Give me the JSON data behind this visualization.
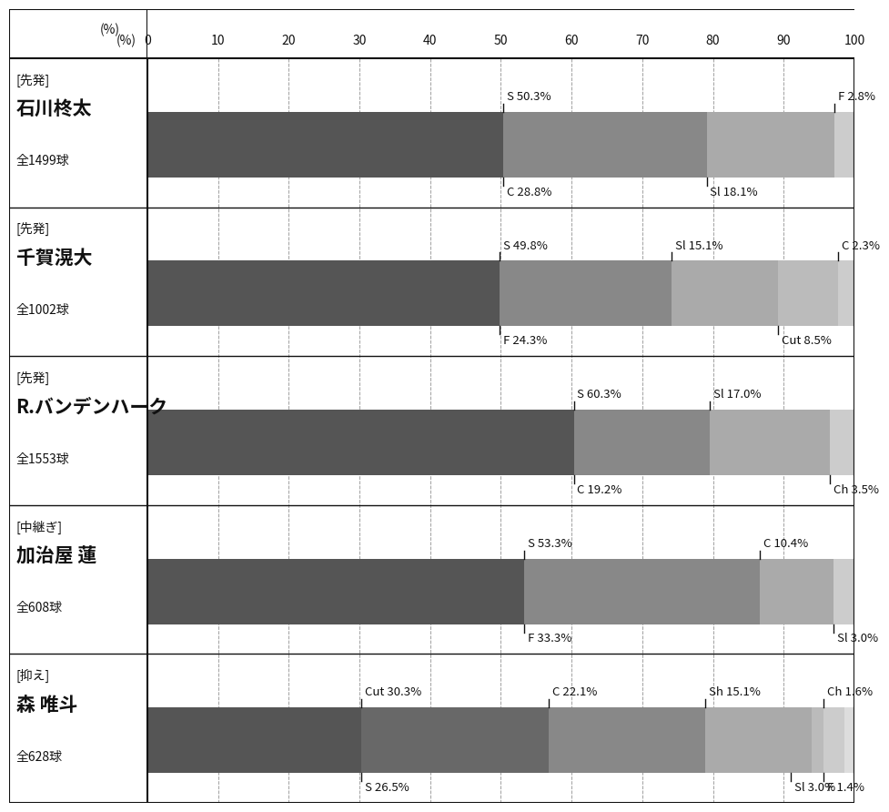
{
  "players": [
    {
      "role": "[先発]",
      "name": "石川柊太",
      "total": "全1499球",
      "segments": [
        {
          "label": "S",
          "value": 50.3,
          "color": "#555555"
        },
        {
          "label": "C",
          "value": 28.8,
          "color": "#888888"
        },
        {
          "label": "Sl",
          "value": 18.1,
          "color": "#aaaaaa"
        },
        {
          "label": "F",
          "value": 2.8,
          "color": "#cccccc"
        }
      ],
      "top_labels": [
        {
          "label": "S 50.3%",
          "x": 50.3
        },
        {
          "label": "F 2.8%",
          "x": 97.2
        }
      ],
      "bottom_labels": [
        {
          "label": "C 28.8%",
          "x": 50.3
        },
        {
          "label": "Sl 18.1%",
          "x": 79.1
        }
      ]
    },
    {
      "role": "[先発]",
      "name": "千賀滉大",
      "total": "全1002球",
      "segments": [
        {
          "label": "S",
          "value": 49.8,
          "color": "#555555"
        },
        {
          "label": "F",
          "value": 24.3,
          "color": "#888888"
        },
        {
          "label": "Sl",
          "value": 15.1,
          "color": "#aaaaaa"
        },
        {
          "label": "Cut",
          "value": 8.5,
          "color": "#bbbbbb"
        },
        {
          "label": "C",
          "value": 2.3,
          "color": "#cccccc"
        }
      ],
      "top_labels": [
        {
          "label": "S 49.8%",
          "x": 49.8
        },
        {
          "label": "Sl 15.1%",
          "x": 74.1
        },
        {
          "label": "C 2.3%",
          "x": 97.7
        }
      ],
      "bottom_labels": [
        {
          "label": "F 24.3%",
          "x": 49.8
        },
        {
          "label": "Cut 8.5%",
          "x": 89.2
        }
      ]
    },
    {
      "role": "[先発]",
      "name": "R.バンデンハーク",
      "total": "全1553球",
      "segments": [
        {
          "label": "S",
          "value": 60.3,
          "color": "#555555"
        },
        {
          "label": "C",
          "value": 19.2,
          "color": "#888888"
        },
        {
          "label": "Sl",
          "value": 17.0,
          "color": "#aaaaaa"
        },
        {
          "label": "Ch",
          "value": 3.5,
          "color": "#cccccc"
        }
      ],
      "top_labels": [
        {
          "label": "S 60.3%",
          "x": 60.3
        },
        {
          "label": "Sl 17.0%",
          "x": 79.5
        }
      ],
      "bottom_labels": [
        {
          "label": "C 19.2%",
          "x": 60.3
        },
        {
          "label": "Ch 3.5%",
          "x": 96.5
        }
      ]
    },
    {
      "role": "[中継ぎ]",
      "name": "加治屋 蓮",
      "total": "全608球",
      "segments": [
        {
          "label": "S",
          "value": 53.3,
          "color": "#555555"
        },
        {
          "label": "F",
          "value": 33.3,
          "color": "#888888"
        },
        {
          "label": "C",
          "value": 10.4,
          "color": "#aaaaaa"
        },
        {
          "label": "Sl",
          "value": 3.0,
          "color": "#cccccc"
        }
      ],
      "top_labels": [
        {
          "label": "S 53.3%",
          "x": 53.3
        },
        {
          "label": "C 10.4%",
          "x": 86.6
        }
      ],
      "bottom_labels": [
        {
          "label": "F 33.3%",
          "x": 53.3
        },
        {
          "label": "Sl 3.0%",
          "x": 97.0
        }
      ]
    },
    {
      "role": "[抑え]",
      "name": "森 唯斗",
      "total": "全628球",
      "segments": [
        {
          "label": "Cut",
          "value": 30.3,
          "color": "#555555"
        },
        {
          "label": "S",
          "value": 26.5,
          "color": "#686868"
        },
        {
          "label": "C",
          "value": 22.1,
          "color": "#888888"
        },
        {
          "label": "Sh",
          "value": 15.1,
          "color": "#aaaaaa"
        },
        {
          "label": "Ch",
          "value": 1.6,
          "color": "#bbbbbb"
        },
        {
          "label": "Sl",
          "value": 3.0,
          "color": "#cccccc"
        },
        {
          "label": "F",
          "value": 1.4,
          "color": "#dddddd"
        }
      ],
      "top_labels": [
        {
          "label": "Cut 30.3%",
          "x": 30.3
        },
        {
          "label": "C 22.1%",
          "x": 56.8
        },
        {
          "label": "Sh 15.1%",
          "x": 78.9
        },
        {
          "label": "Ch 1.6%",
          "x": 95.6
        }
      ],
      "bottom_labels": [
        {
          "label": "S 26.5%",
          "x": 30.3
        },
        {
          "label": "Sl 3.0%",
          "x": 91.0
        },
        {
          "label": "F 1.4%",
          "x": 95.6
        }
      ]
    }
  ],
  "x_ticks": [
    0,
    10,
    20,
    30,
    40,
    50,
    60,
    70,
    80,
    90,
    100
  ],
  "xlabel": "(%)",
  "background_color": "#ffffff",
  "bar_height": 0.44,
  "label_fontsize": 9.5,
  "name_fontsize": 15,
  "role_fontsize": 10,
  "total_fontsize": 10,
  "tick_fontsize": 10,
  "grid_color": "#999999",
  "border_color": "#111111",
  "text_color": "#111111"
}
